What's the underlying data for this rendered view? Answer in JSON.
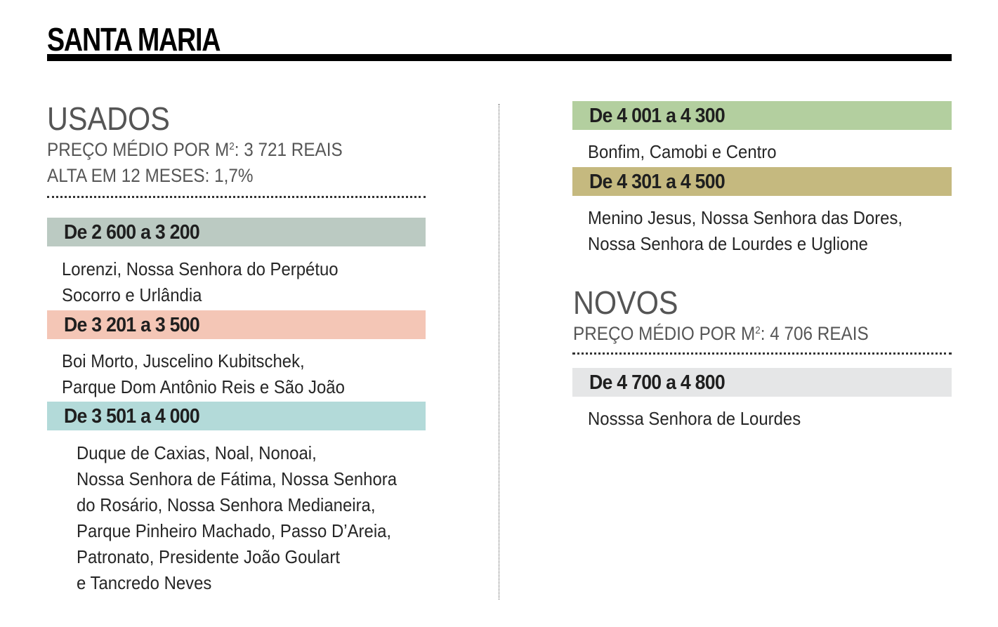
{
  "title": "SANTA MARIA",
  "usados": {
    "heading": "USADOS",
    "avg_price_label": "PREÇO MÉDIO POR M",
    "avg_price_unit_exp": "2",
    "avg_price_value": ": 3 721 REAIS",
    "change_line": "ALTA EM 12 MESES: 1,7%",
    "ranges": [
      {
        "label": "De 2 600 a 3 200",
        "color": "#bbcac2",
        "lines": [
          "Lorenzi, Nossa Senhora do Perpétuo",
          "Socorro e Urlândia"
        ]
      },
      {
        "label": "De 3 201 a 3 500",
        "color": "#f4c6b6",
        "lines": [
          "Boi Morto, Juscelino Kubitschek,",
          "Parque Dom Antônio Reis e São João"
        ]
      },
      {
        "label": "De 3 501 a 4 000",
        "color": "#b3dad9",
        "lines": [
          "Duque de Caxias, Noal, Nonoai,",
          "Nossa Senhora de Fátima, Nossa Senhora",
          "do Rosário, Nossa Senhora Medianeira,",
          "Parque Pinheiro Machado, Passo D’Areia,",
          "Patronato, Presidente João Goulart",
          "e Tancredo Neves"
        ]
      },
      {
        "label": "De 4 001 a 4 300",
        "color": "#b3cf9f",
        "lines": [
          "Bonfim, Camobi e Centro"
        ]
      },
      {
        "label": "De 4 301 a 4 500",
        "color": "#c5b97f",
        "lines": [
          "Menino Jesus, Nossa Senhora das Dores,",
          "Nossa Senhora de Lourdes e Uglione"
        ]
      }
    ]
  },
  "novos": {
    "heading": "NOVOS",
    "avg_price_label": "PREÇO MÉDIO POR M",
    "avg_price_unit_exp": "2",
    "avg_price_value": ": 4 706 REAIS",
    "ranges": [
      {
        "label": "De 4 700 a 4 800",
        "color": "#e5e6e7",
        "lines": [
          "Nosssa Senhora de Lourdes"
        ]
      }
    ]
  }
}
